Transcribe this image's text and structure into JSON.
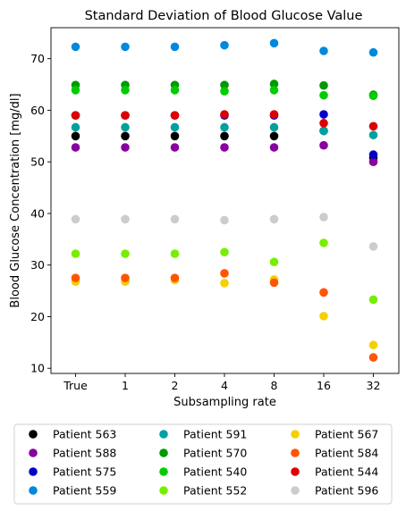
{
  "chart_data": {
    "type": "scatter",
    "title": "Standard Deviation of Blood Glucose Value",
    "xlabel": "Subsampling rate",
    "ylabel": "Blood Glucose Concentration [mg/dl]",
    "categories": [
      "True",
      "1",
      "2",
      "4",
      "8",
      "16",
      "32"
    ],
    "yticks": [
      10,
      20,
      30,
      40,
      50,
      60,
      70
    ],
    "ylim": [
      9,
      76
    ],
    "grid": false,
    "legend_position": "bottom",
    "legend_columns": 3,
    "series": [
      {
        "name": "Patient 563",
        "color": "#000000",
        "values": [
          55.0,
          55.0,
          55.0,
          55.0,
          55.0,
          56.0,
          50.8
        ]
      },
      {
        "name": "Patient 588",
        "color": "#8800a0",
        "values": [
          52.8,
          52.8,
          52.8,
          52.8,
          52.8,
          53.2,
          50.0
        ]
      },
      {
        "name": "Patient 575",
        "color": "#0000c8",
        "values": [
          59.0,
          59.0,
          59.0,
          59.0,
          59.0,
          59.2,
          51.4
        ]
      },
      {
        "name": "Patient 559",
        "color": "#0088dd",
        "values": [
          72.3,
          72.3,
          72.3,
          72.6,
          73.0,
          71.5,
          71.2
        ]
      },
      {
        "name": "Patient 591",
        "color": "#00a0a0",
        "values": [
          56.7,
          56.7,
          56.7,
          56.7,
          56.7,
          56.0,
          55.2
        ]
      },
      {
        "name": "Patient 570",
        "color": "#009900",
        "values": [
          64.9,
          64.9,
          64.9,
          64.9,
          65.1,
          64.8,
          63.0
        ]
      },
      {
        "name": "Patient 540",
        "color": "#00cc00",
        "values": [
          63.9,
          63.9,
          63.9,
          63.7,
          63.9,
          62.9,
          62.8
        ]
      },
      {
        "name": "Patient 552",
        "color": "#77ee00",
        "values": [
          32.2,
          32.2,
          32.2,
          32.5,
          30.6,
          34.3,
          23.3
        ]
      },
      {
        "name": "Patient 567",
        "color": "#f5d000",
        "values": [
          26.8,
          26.8,
          27.1,
          26.5,
          27.2,
          20.1,
          14.5
        ]
      },
      {
        "name": "Patient 584",
        "color": "#ff5500",
        "values": [
          27.5,
          27.5,
          27.5,
          28.4,
          26.6,
          24.7,
          12.1
        ]
      },
      {
        "name": "Patient 544",
        "color": "#dd0000",
        "values": [
          59.0,
          59.0,
          59.0,
          59.2,
          59.2,
          57.5,
          56.9
        ]
      },
      {
        "name": "Patient 596",
        "color": "#cccccc",
        "values": [
          38.9,
          38.9,
          38.9,
          38.7,
          38.9,
          39.3,
          33.6
        ]
      }
    ]
  }
}
